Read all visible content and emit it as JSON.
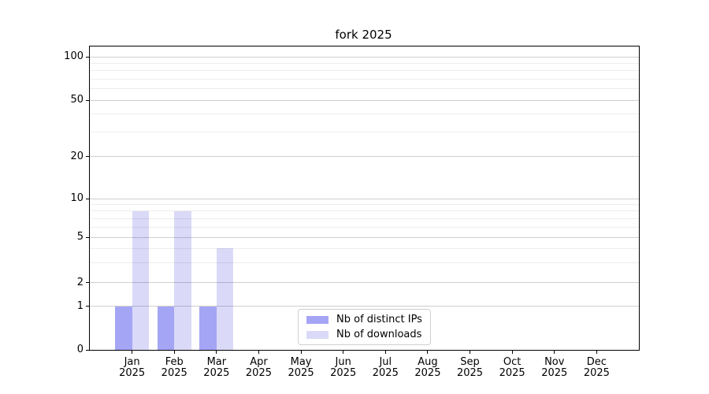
{
  "chart_data": {
    "type": "bar",
    "title": "fork 2025",
    "categories": [
      "Jan 2025",
      "Feb 2025",
      "Mar 2025",
      "Apr 2025",
      "May 2025",
      "Jun 2025",
      "Jul 2025",
      "Aug 2025",
      "Sep 2025",
      "Oct 2025",
      "Nov 2025",
      "Dec 2025"
    ],
    "series": [
      {
        "name": "Nb of distinct IPs",
        "color": "#a5a5f6",
        "values": [
          1,
          1,
          1,
          0,
          0,
          0,
          0,
          0,
          0,
          0,
          0,
          0
        ]
      },
      {
        "name": "Nb of downloads",
        "color": "#dadaf8",
        "values": [
          8,
          8,
          4,
          0,
          0,
          0,
          0,
          0,
          0,
          0,
          0,
          0
        ]
      }
    ],
    "y_axis": {
      "scale": "log-like",
      "ticks": [
        0,
        1,
        2,
        5,
        10,
        20,
        50,
        100
      ],
      "tick_fractions_from_top": [
        1.0,
        0.8571,
        0.7792,
        0.6286,
        0.5013,
        0.3636,
        0.1779,
        0.0338
      ],
      "minor_ticks": [
        3,
        4,
        6,
        7,
        8,
        9,
        30,
        40,
        60,
        70,
        80,
        90
      ],
      "ylim_approx": [
        0,
        115
      ]
    },
    "legend": {
      "position": "lower center"
    },
    "grid": true,
    "colors": {
      "background": "#ffffff",
      "axis": "#000000",
      "major_grid": "#cfcfcf",
      "minor_grid": "#ededed"
    }
  }
}
